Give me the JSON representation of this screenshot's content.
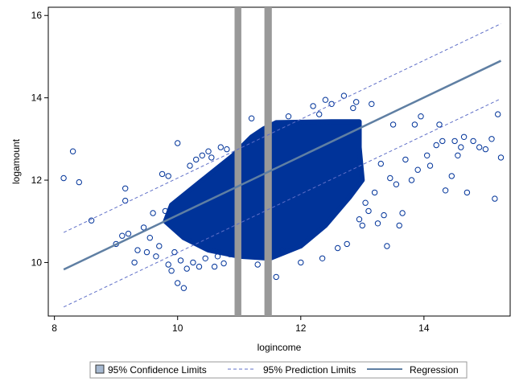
{
  "chart_data": {
    "type": "scatter",
    "title": "",
    "xlabel": "logincome",
    "ylabel": "logamount",
    "xlim": [
      7.9,
      15.4
    ],
    "ylim": [
      8.7,
      16.2
    ],
    "xticks": [
      8,
      10,
      12,
      14
    ],
    "yticks": [
      10,
      12,
      14,
      16
    ],
    "grid": false,
    "legend_placement": "bottom",
    "legend": [
      {
        "key": "confidence",
        "label": "95% Confidence Limits"
      },
      {
        "key": "prediction",
        "label": "95% Prediction Limits"
      },
      {
        "key": "regression",
        "label": "Regression"
      }
    ],
    "regression_line": {
      "x": [
        8.15,
        15.25
      ],
      "y": [
        9.83,
        14.9
      ]
    },
    "prediction_upper": {
      "x": [
        8.15,
        15.25
      ],
      "y": [
        10.73,
        15.8
      ]
    },
    "prediction_lower": {
      "x": [
        8.15,
        15.25
      ],
      "y": [
        8.92,
        13.98
      ]
    },
    "confidence_bands": [
      {
        "x_center": 10.98,
        "width": 0.11
      },
      {
        "x_center": 11.47,
        "width": 0.12
      }
    ],
    "dense_cloud": {
      "polygon": [
        [
          9.9,
          11.4
        ],
        [
          10.4,
          12.0
        ],
        [
          10.9,
          12.6
        ],
        [
          11.2,
          13.05
        ],
        [
          11.4,
          13.25
        ],
        [
          11.6,
          13.4
        ],
        [
          12.5,
          13.42
        ],
        [
          12.95,
          13.42
        ],
        [
          12.95,
          12.8
        ],
        [
          13.0,
          12.0
        ],
        [
          12.8,
          11.6
        ],
        [
          12.4,
          10.9
        ],
        [
          12.0,
          10.4
        ],
        [
          11.5,
          10.1
        ],
        [
          11.0,
          10.15
        ],
        [
          10.5,
          10.3
        ],
        [
          10.1,
          10.6
        ],
        [
          9.8,
          11.0
        ]
      ]
    },
    "scatter_points": [
      [
        8.15,
        12.05
      ],
      [
        8.3,
        12.7
      ],
      [
        8.4,
        11.95
      ],
      [
        8.6,
        11.02
      ],
      [
        9.0,
        10.45
      ],
      [
        9.1,
        10.65
      ],
      [
        9.15,
        11.8
      ],
      [
        9.15,
        11.5
      ],
      [
        9.2,
        10.7
      ],
      [
        9.3,
        10.0
      ],
      [
        9.35,
        10.3
      ],
      [
        9.45,
        10.85
      ],
      [
        9.5,
        10.25
      ],
      [
        9.55,
        10.6
      ],
      [
        9.6,
        11.2
      ],
      [
        9.65,
        10.15
      ],
      [
        9.7,
        10.4
      ],
      [
        9.75,
        12.15
      ],
      [
        9.8,
        11.25
      ],
      [
        9.85,
        12.1
      ],
      [
        9.85,
        9.95
      ],
      [
        9.9,
        9.8
      ],
      [
        9.95,
        10.25
      ],
      [
        10.0,
        12.9
      ],
      [
        10.0,
        9.5
      ],
      [
        10.05,
        10.05
      ],
      [
        10.1,
        9.38
      ],
      [
        10.15,
        9.85
      ],
      [
        10.2,
        12.35
      ],
      [
        10.25,
        10.0
      ],
      [
        10.3,
        12.5
      ],
      [
        10.35,
        9.9
      ],
      [
        10.4,
        12.6
      ],
      [
        10.45,
        10.1
      ],
      [
        10.5,
        12.7
      ],
      [
        10.55,
        12.55
      ],
      [
        10.6,
        9.9
      ],
      [
        10.65,
        10.15
      ],
      [
        10.7,
        12.8
      ],
      [
        10.75,
        9.98
      ],
      [
        10.8,
        12.75
      ],
      [
        10.85,
        10.2
      ],
      [
        11.2,
        13.5
      ],
      [
        11.3,
        9.95
      ],
      [
        11.6,
        9.65
      ],
      [
        11.7,
        10.3
      ],
      [
        11.8,
        13.55
      ],
      [
        12.0,
        10.0
      ],
      [
        12.2,
        13.8
      ],
      [
        12.3,
        13.6
      ],
      [
        12.35,
        10.1
      ],
      [
        12.4,
        13.95
      ],
      [
        12.5,
        13.85
      ],
      [
        12.6,
        10.35
      ],
      [
        12.7,
        14.05
      ],
      [
        12.75,
        10.45
      ],
      [
        12.85,
        13.75
      ],
      [
        12.9,
        13.9
      ],
      [
        12.95,
        11.05
      ],
      [
        13.0,
        10.9
      ],
      [
        13.05,
        11.45
      ],
      [
        13.1,
        11.25
      ],
      [
        13.15,
        13.85
      ],
      [
        13.2,
        11.7
      ],
      [
        13.25,
        10.95
      ],
      [
        13.3,
        12.4
      ],
      [
        13.35,
        11.15
      ],
      [
        13.4,
        10.4
      ],
      [
        13.45,
        12.05
      ],
      [
        13.5,
        13.35
      ],
      [
        13.55,
        11.9
      ],
      [
        13.6,
        10.9
      ],
      [
        13.65,
        11.2
      ],
      [
        13.7,
        12.5
      ],
      [
        13.8,
        12.0
      ],
      [
        13.85,
        13.35
      ],
      [
        13.9,
        12.25
      ],
      [
        13.95,
        13.55
      ],
      [
        14.05,
        12.6
      ],
      [
        14.1,
        12.35
      ],
      [
        14.2,
        12.85
      ],
      [
        14.25,
        13.35
      ],
      [
        14.3,
        12.95
      ],
      [
        14.35,
        11.75
      ],
      [
        14.45,
        12.1
      ],
      [
        14.5,
        12.95
      ],
      [
        14.55,
        12.6
      ],
      [
        14.6,
        12.8
      ],
      [
        14.65,
        13.05
      ],
      [
        14.7,
        11.7
      ],
      [
        14.8,
        12.95
      ],
      [
        14.9,
        12.8
      ],
      [
        15.0,
        12.75
      ],
      [
        15.1,
        13.0
      ],
      [
        15.15,
        11.55
      ],
      [
        15.2,
        13.6
      ],
      [
        15.25,
        12.55
      ]
    ],
    "scatter_color": "#003399",
    "band_color": "#999999",
    "regression_color": "#5f7fa3",
    "prediction_color": "#6070c8"
  }
}
